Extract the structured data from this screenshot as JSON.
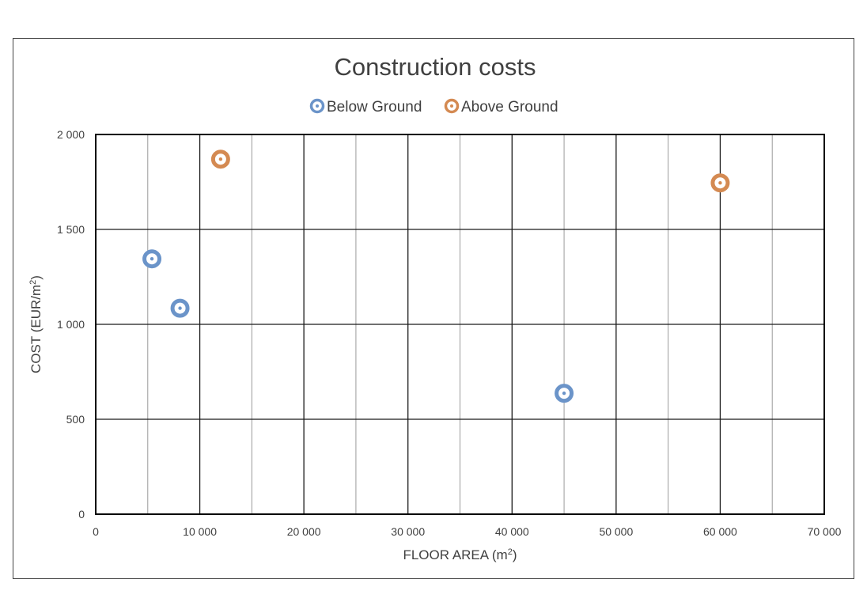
{
  "chart_data": {
    "type": "scatter",
    "title": "Construction costs",
    "xlabel": "FLOOR AREA (m",
    "xlabel_sup": "2",
    "xlabel_end": ")",
    "ylabel": "COST (EUR/m",
    "ylabel_sup": "2",
    "ylabel_end": ")",
    "xlim": [
      0,
      70000
    ],
    "ylim": [
      0,
      2000
    ],
    "x_ticks": [
      0,
      10000,
      20000,
      30000,
      40000,
      50000,
      60000,
      70000
    ],
    "x_tick_labels": [
      "0",
      "10 000",
      "20 000",
      "30 000",
      "40 000",
      "50 000",
      "60 000",
      "70 000"
    ],
    "y_ticks": [
      0,
      500,
      1000,
      1500,
      2000
    ],
    "y_tick_labels": [
      "0",
      "500",
      "1 000",
      "1 500",
      "2 000"
    ],
    "x_minor_step": 5000,
    "grid": true,
    "legend_position": "top-center",
    "series": [
      {
        "name": "Below Ground",
        "color": "#6b94c9",
        "points": [
          {
            "x": 5400,
            "y": 1345
          },
          {
            "x": 8100,
            "y": 1085
          },
          {
            "x": 45000,
            "y": 637
          }
        ]
      },
      {
        "name": "Above Ground",
        "color": "#d48a52",
        "points": [
          {
            "x": 12000,
            "y": 1870
          },
          {
            "x": 60000,
            "y": 1745
          }
        ]
      }
    ]
  }
}
